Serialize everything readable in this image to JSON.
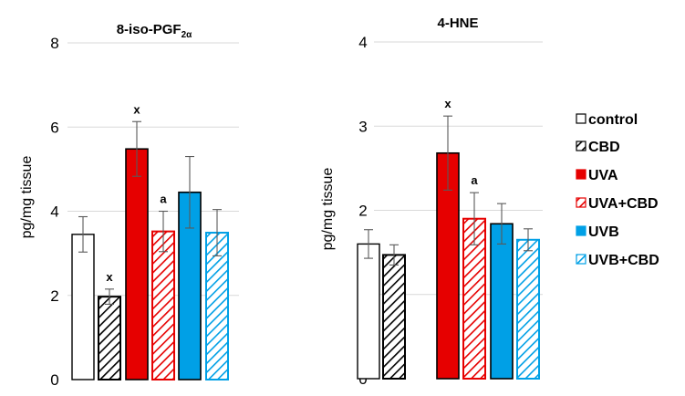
{
  "chart_data": [
    {
      "type": "bar",
      "title": "8-iso-PGF",
      "title_subscript": "2α",
      "ylabel": "pg/mg tissue",
      "ylim": [
        0,
        8
      ],
      "yticks": [
        0,
        2,
        4,
        6,
        8
      ],
      "grid": true,
      "categories": [
        "control",
        "CBD",
        "UVA",
        "UVA+CBD",
        "UVB",
        "UVB+CBD"
      ],
      "values": [
        3.45,
        1.97,
        5.48,
        3.52,
        4.45,
        3.49
      ],
      "errors": [
        0.42,
        0.18,
        0.65,
        0.48,
        0.85,
        0.55
      ],
      "annotations": [
        "",
        "x",
        "x",
        "a",
        "",
        ""
      ]
    },
    {
      "type": "bar",
      "title": "4-HNE",
      "ylabel": "pg/mg tissue",
      "ylim": [
        0,
        4
      ],
      "yticks": [
        0,
        1,
        2,
        3,
        4
      ],
      "grid": true,
      "categories": [
        "control",
        "CBD",
        "UVA",
        "UVA+CBD",
        "UVB",
        "UVB+CBD"
      ],
      "values": [
        1.6,
        1.47,
        2.68,
        1.9,
        1.84,
        1.65
      ],
      "errors": [
        0.17,
        0.12,
        0.44,
        0.31,
        0.24,
        0.13
      ],
      "annotations": [
        "",
        "",
        "x",
        "a",
        "",
        ""
      ]
    }
  ],
  "legend": {
    "position": "right",
    "items": [
      {
        "label": "control",
        "fill": "#ffffff",
        "hatch": ""
      },
      {
        "label": "CBD",
        "fill": "#ffffff",
        "hatch": "#000000"
      },
      {
        "label": "UVA",
        "fill": "#e60000",
        "hatch": ""
      },
      {
        "label": "UVA+CBD",
        "fill": "#ffffff",
        "hatch": "#e60000"
      },
      {
        "label": "UVB",
        "fill": "#00a0e6",
        "hatch": ""
      },
      {
        "label": "UVB+CBD",
        "fill": "#ffffff",
        "hatch": "#00a0e6"
      }
    ]
  }
}
